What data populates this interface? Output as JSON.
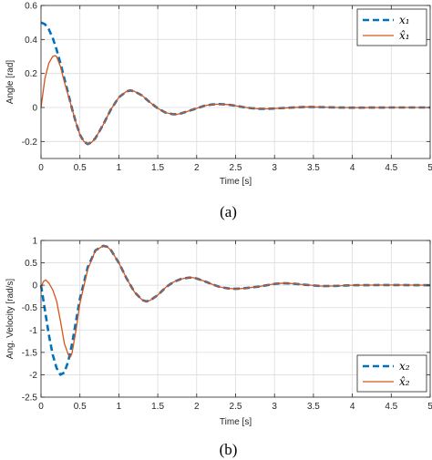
{
  "chart_data": [
    {
      "type": "line",
      "caption": "(a)",
      "xlabel": "Time [s]",
      "ylabel": "Angle [rad]",
      "xlim": [
        0,
        5
      ],
      "ylim": [
        -0.3,
        0.6
      ],
      "xticks": [
        0,
        0.5,
        1,
        1.5,
        2,
        2.5,
        3,
        3.5,
        4,
        4.5,
        5
      ],
      "xtick_labels": [
        "0",
        "0.5",
        "1",
        "1.5",
        "2",
        "2.5",
        "3",
        "3.5",
        "4",
        "4.5",
        "5"
      ],
      "yticks": [
        -0.2,
        0,
        0.2,
        0.4,
        0.6
      ],
      "ytick_labels": [
        "-0.2",
        "0",
        "0.2",
        "0.4",
        "0.6"
      ],
      "grid": true,
      "legend_position": "top-right",
      "series": [
        {
          "name": "x₁",
          "color": "#0072BD",
          "style": "dashed",
          "x": [
            0,
            0.05,
            0.1,
            0.15,
            0.2,
            0.25,
            0.3,
            0.35,
            0.4,
            0.45,
            0.5,
            0.55,
            0.6,
            0.65,
            0.7,
            0.8,
            0.9,
            1.0,
            1.1,
            1.15,
            1.2,
            1.3,
            1.4,
            1.5,
            1.6,
            1.7,
            1.75,
            1.8,
            1.9,
            2.0,
            2.1,
            2.2,
            2.3,
            2.4,
            2.5,
            2.6,
            2.7,
            2.8,
            2.9,
            3.0,
            3.2,
            3.4,
            3.6,
            3.8,
            4.0,
            4.5,
            5.0
          ],
          "y": [
            0.5,
            0.49,
            0.46,
            0.41,
            0.34,
            0.26,
            0.17,
            0.08,
            -0.01,
            -0.09,
            -0.16,
            -0.2,
            -0.215,
            -0.205,
            -0.18,
            -0.1,
            -0.01,
            0.06,
            0.095,
            0.1,
            0.095,
            0.07,
            0.03,
            -0.005,
            -0.03,
            -0.04,
            -0.04,
            -0.035,
            -0.02,
            -0.005,
            0.01,
            0.018,
            0.02,
            0.017,
            0.01,
            0.002,
            -0.004,
            -0.008,
            -0.008,
            -0.006,
            -0.001,
            0.003,
            0.002,
            0.0,
            -0.001,
            0.0,
            0.0
          ]
        },
        {
          "name": "x̂₁",
          "color": "#D95319",
          "style": "solid",
          "x": [
            0,
            0.05,
            0.1,
            0.15,
            0.18,
            0.2,
            0.25,
            0.3,
            0.35,
            0.4,
            0.45,
            0.5,
            0.55,
            0.6,
            0.65,
            0.7,
            0.8,
            0.9,
            1.0,
            1.1,
            1.15,
            1.2,
            1.3,
            1.4,
            1.5,
            1.6,
            1.7,
            1.75,
            1.8,
            1.9,
            2.0,
            2.1,
            2.2,
            2.3,
            2.4,
            2.5,
            2.6,
            2.7,
            2.8,
            2.9,
            3.0,
            3.2,
            3.4,
            3.6,
            3.8,
            4.0,
            4.5,
            5.0
          ],
          "y": [
            0.0,
            0.17,
            0.26,
            0.3,
            0.305,
            0.3,
            0.24,
            0.15,
            0.07,
            -0.01,
            -0.09,
            -0.16,
            -0.2,
            -0.215,
            -0.205,
            -0.18,
            -0.1,
            -0.01,
            0.06,
            0.095,
            0.1,
            0.095,
            0.07,
            0.03,
            -0.005,
            -0.03,
            -0.04,
            -0.04,
            -0.035,
            -0.02,
            -0.005,
            0.01,
            0.018,
            0.02,
            0.017,
            0.01,
            0.002,
            -0.004,
            -0.008,
            -0.008,
            -0.006,
            -0.001,
            0.003,
            0.002,
            0.0,
            -0.001,
            0.0,
            0.0
          ]
        }
      ]
    },
    {
      "type": "line",
      "caption": "(b)",
      "xlabel": "Time [s]",
      "ylabel": "Ang. Velocity [rad/s]",
      "xlim": [
        0,
        5
      ],
      "ylim": [
        -2.5,
        1
      ],
      "xticks": [
        0,
        0.5,
        1,
        1.5,
        2,
        2.5,
        3,
        3.5,
        4,
        4.5,
        5
      ],
      "xtick_labels": [
        "0",
        "0.5",
        "1",
        "1.5",
        "2",
        "2.5",
        "3",
        "3.5",
        "4",
        "4.5",
        "5"
      ],
      "yticks": [
        -2.5,
        -2,
        -1.5,
        -1,
        -0.5,
        0,
        0.5,
        1
      ],
      "ytick_labels": [
        "-2.5",
        "-2",
        "-1.5",
        "-1",
        "-0.5",
        "0",
        "0.5",
        "1"
      ],
      "grid": true,
      "legend_position": "bottom-right",
      "series": [
        {
          "name": "x₂",
          "color": "#0072BD",
          "style": "dashed",
          "x": [
            0,
            0.05,
            0.1,
            0.15,
            0.2,
            0.25,
            0.3,
            0.35,
            0.4,
            0.45,
            0.5,
            0.6,
            0.7,
            0.8,
            0.85,
            0.9,
            1.0,
            1.1,
            1.2,
            1.3,
            1.35,
            1.4,
            1.5,
            1.6,
            1.7,
            1.8,
            1.9,
            1.95,
            2.0,
            2.1,
            2.2,
            2.3,
            2.4,
            2.5,
            2.6,
            2.8,
            3.0,
            3.1,
            3.2,
            3.4,
            3.6,
            3.8,
            4.0,
            4.5,
            5.0
          ],
          "y": [
            0.0,
            -0.55,
            -1.1,
            -1.55,
            -1.85,
            -2.0,
            -1.95,
            -1.7,
            -1.3,
            -0.8,
            -0.3,
            0.4,
            0.78,
            0.88,
            0.86,
            0.78,
            0.5,
            0.15,
            -0.15,
            -0.33,
            -0.36,
            -0.34,
            -0.22,
            -0.05,
            0.07,
            0.14,
            0.17,
            0.17,
            0.15,
            0.09,
            0.02,
            -0.04,
            -0.07,
            -0.08,
            -0.07,
            -0.03,
            0.03,
            0.045,
            0.04,
            0.01,
            -0.02,
            -0.015,
            0.0,
            0.005,
            0.0
          ]
        },
        {
          "name": "x̂₂",
          "color": "#D95319",
          "style": "solid",
          "x": [
            0,
            0.03,
            0.06,
            0.1,
            0.15,
            0.2,
            0.25,
            0.3,
            0.35,
            0.38,
            0.4,
            0.45,
            0.5,
            0.6,
            0.7,
            0.8,
            0.85,
            0.9,
            1.0,
            1.1,
            1.2,
            1.3,
            1.35,
            1.4,
            1.5,
            1.6,
            1.7,
            1.8,
            1.9,
            1.95,
            2.0,
            2.1,
            2.2,
            2.3,
            2.4,
            2.5,
            2.6,
            2.8,
            3.0,
            3.1,
            3.2,
            3.4,
            3.6,
            3.8,
            4.0,
            4.5,
            5.0
          ],
          "y": [
            -0.05,
            0.08,
            0.12,
            0.05,
            -0.1,
            -0.35,
            -0.8,
            -1.3,
            -1.55,
            -1.6,
            -1.5,
            -1.0,
            -0.4,
            0.35,
            0.78,
            0.88,
            0.86,
            0.78,
            0.5,
            0.15,
            -0.15,
            -0.33,
            -0.36,
            -0.34,
            -0.22,
            -0.05,
            0.07,
            0.14,
            0.17,
            0.17,
            0.15,
            0.09,
            0.02,
            -0.04,
            -0.07,
            -0.08,
            -0.07,
            -0.03,
            0.03,
            0.045,
            0.04,
            0.01,
            -0.02,
            -0.015,
            0.0,
            0.005,
            0.0
          ]
        }
      ]
    }
  ]
}
